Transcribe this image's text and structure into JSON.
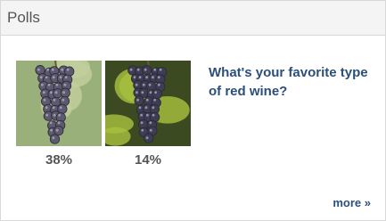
{
  "header": {
    "title": "Polls"
  },
  "poll": {
    "question": "What's your favorite type of red wine?",
    "options": [
      {
        "percent": "38%"
      },
      {
        "percent": "14%"
      }
    ],
    "more_link": "more »"
  }
}
